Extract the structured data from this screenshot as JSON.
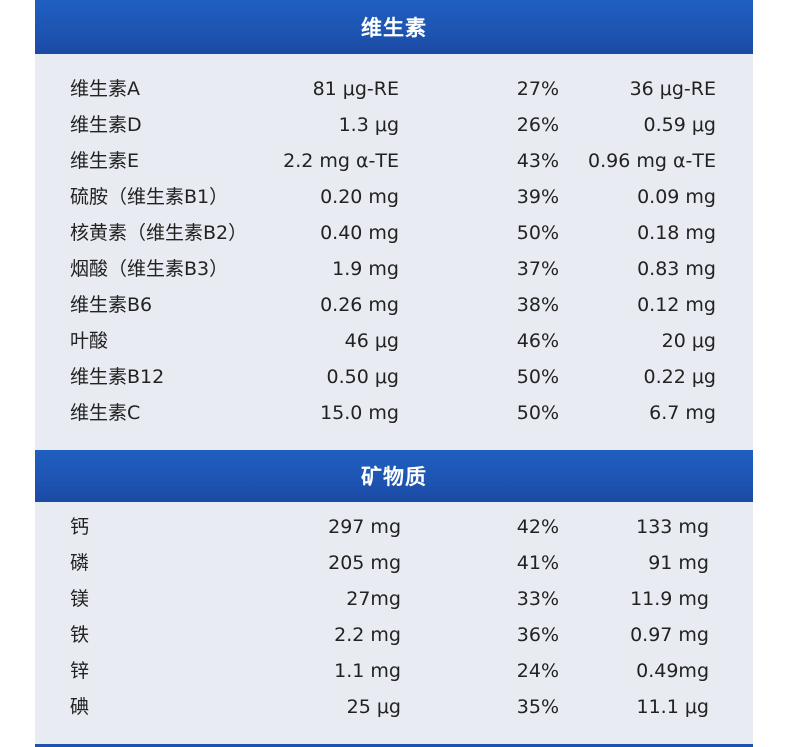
{
  "colors": {
    "header_blue": "#1e55b3",
    "panel_bg": "#e8ebf1",
    "text": "#222222"
  },
  "vitamins": {
    "title": "维生素",
    "rows": [
      {
        "name": "维生素A",
        "amount": "81 μg-RE",
        "percent": "27%",
        "value": "36 μg-RE"
      },
      {
        "name": "维生素D",
        "amount": "1.3 μg",
        "percent": "26%",
        "value": "0.59 μg"
      },
      {
        "name": "维生素E",
        "amount": "2.2 mg α-TE",
        "percent": "43%",
        "value": "0.96 mg α-TE"
      },
      {
        "name": "硫胺（维生素B1）",
        "amount": "0.20 mg",
        "percent": "39%",
        "value": "0.09 mg"
      },
      {
        "name": "核黄素（维生素B2）",
        "amount": "0.40 mg",
        "percent": "50%",
        "value": "0.18 mg"
      },
      {
        "name": "烟酸（维生素B3）",
        "amount": "1.9 mg",
        "percent": "37%",
        "value": "0.83 mg"
      },
      {
        "name": "维生素B6",
        "amount": "0.26 mg",
        "percent": "38%",
        "value": "0.12 mg"
      },
      {
        "name": "叶酸",
        "amount": "46 μg",
        "percent": "46%",
        "value": "20 μg"
      },
      {
        "name": "维生素B12",
        "amount": "0.50 μg",
        "percent": "50%",
        "value": "0.22 μg"
      },
      {
        "name": "维生素C",
        "amount": "15.0 mg",
        "percent": "50%",
        "value": "6.7 mg"
      }
    ]
  },
  "minerals": {
    "title": "矿物质",
    "rows": [
      {
        "name": "钙",
        "amount": "297 mg",
        "percent": "42%",
        "value": "133 mg"
      },
      {
        "name": "磷",
        "amount": "205 mg",
        "percent": "41%",
        "value": "91 mg"
      },
      {
        "name": "镁",
        "amount": "27mg",
        "percent": "33%",
        "value": "11.9 mg"
      },
      {
        "name": "铁",
        "amount": "2.2 mg",
        "percent": "36%",
        "value": "0.97 mg"
      },
      {
        "name": "锌",
        "amount": "1.1 mg",
        "percent": "24%",
        "value": "0.49mg"
      },
      {
        "name": "碘",
        "amount": "25 μg",
        "percent": "35%",
        "value": "11.1 μg"
      }
    ]
  }
}
